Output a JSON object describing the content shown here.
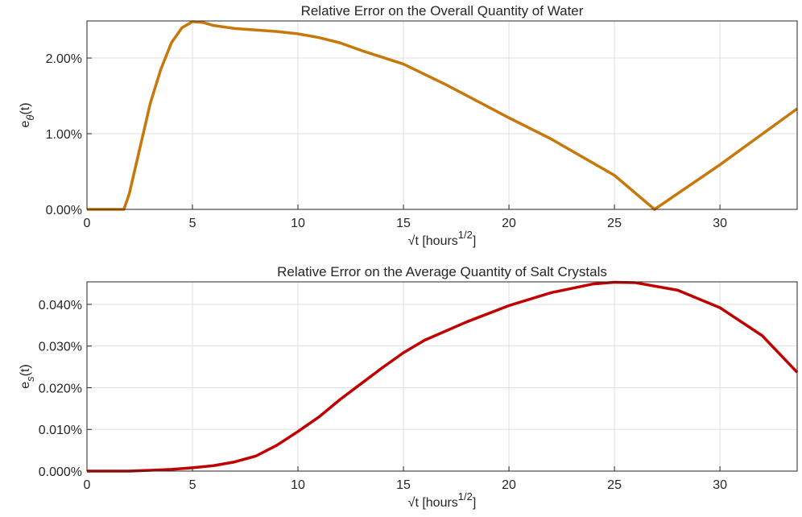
{
  "chart_data": [
    {
      "type": "line",
      "title": "Relative Error on the Overall Quantity of Water",
      "xlabel": [
        "√t [hours",
        "1/2",
        "]"
      ],
      "ylabel": [
        "e",
        "θ",
        "(t)"
      ],
      "xlim": [
        0,
        33.66
      ],
      "ylim": [
        0,
        2.49
      ],
      "xticks": [
        0,
        5,
        10,
        15,
        20,
        25,
        30
      ],
      "yticks": [
        {
          "value": 0,
          "label": "0.00%"
        },
        {
          "value": 1,
          "label": "1.00%"
        },
        {
          "value": 2,
          "label": "2.00%"
        }
      ],
      "grid": true,
      "x": [
        0,
        1,
        1.75,
        2,
        2.5,
        3,
        3.5,
        4,
        4.5,
        5,
        5.5,
        6,
        7,
        8,
        9,
        10,
        11,
        12,
        13,
        15,
        17,
        20,
        22,
        25,
        26.9,
        30,
        33.66
      ],
      "series": [
        {
          "color": "#c8780a",
          "values": [
            0,
            0,
            0,
            0.2,
            0.8,
            1.4,
            1.85,
            2.2,
            2.4,
            2.48,
            2.47,
            2.43,
            2.39,
            2.37,
            2.35,
            2.32,
            2.27,
            2.2,
            2.1,
            1.92,
            1.65,
            1.21,
            0.93,
            0.45,
            0,
            0.59,
            1.33
          ]
        }
      ]
    },
    {
      "type": "line",
      "title": "Relative Error on the Average Quantity of Salt Crystals",
      "xlabel": [
        "√t [hours",
        "1/2",
        "]"
      ],
      "ylabel": [
        "e",
        "s",
        "(t)"
      ],
      "xlim": [
        0,
        33.66
      ],
      "ylim": [
        0,
        0.0454
      ],
      "xticks": [
        0,
        5,
        10,
        15,
        20,
        25,
        30
      ],
      "yticks": [
        {
          "value": 0,
          "label": "0.000%"
        },
        {
          "value": 0.01,
          "label": "0.010%"
        },
        {
          "value": 0.02,
          "label": "0.020%"
        },
        {
          "value": 0.03,
          "label": "0.030%"
        },
        {
          "value": 0.04,
          "label": "0.040%"
        }
      ],
      "grid": true,
      "x": [
        0,
        2,
        3,
        4,
        5,
        6,
        7,
        8,
        9,
        10,
        11,
        12,
        13,
        14,
        15,
        16,
        18,
        20,
        22,
        24,
        25,
        26,
        28,
        30,
        32,
        33.66
      ],
      "series": [
        {
          "color": "#c00000",
          "values": [
            0,
            0,
            0.0002,
            0.0004,
            0.0008,
            0.0013,
            0.0022,
            0.0036,
            0.0062,
            0.0095,
            0.013,
            0.0172,
            0.021,
            0.0248,
            0.0284,
            0.0314,
            0.0358,
            0.0397,
            0.0428,
            0.0449,
            0.0453,
            0.0452,
            0.0434,
            0.0392,
            0.0325,
            0.0237
          ]
        }
      ]
    }
  ]
}
